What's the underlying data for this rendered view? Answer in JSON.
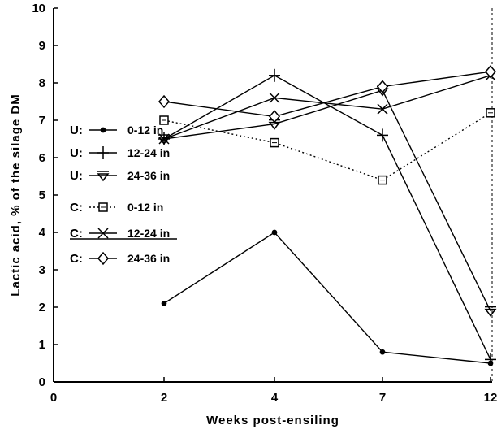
{
  "chart_data": {
    "type": "line",
    "xlabel": "Weeks post-ensiling",
    "ylabel": "Lactic acid, % of the silage DM",
    "xlim": [
      0,
      12
    ],
    "ylim": [
      0,
      10
    ],
    "x_ticks": [
      "0",
      "2",
      "4",
      "7",
      "12"
    ],
    "y_ticks": [
      "0",
      "1",
      "2",
      "3",
      "4",
      "5",
      "6",
      "7",
      "8",
      "9",
      "10"
    ],
    "x_categories": [
      0,
      2,
      4,
      7,
      12
    ],
    "grid": false,
    "legend_position": "left",
    "series": [
      {
        "prefix": "U:",
        "name": "0-12 in",
        "marker": "dot",
        "line": "solid",
        "x": [
          2,
          4,
          7,
          12
        ],
        "y": [
          2.1,
          4.0,
          0.8,
          0.5
        ]
      },
      {
        "prefix": "U:",
        "name": "12-24 in",
        "marker": "plus",
        "line": "solid",
        "x": [
          2,
          4,
          7,
          12
        ],
        "y": [
          6.5,
          8.2,
          6.6,
          0.6
        ]
      },
      {
        "prefix": "U:",
        "name": "24-36 in",
        "marker": "triangle-down",
        "line": "solid",
        "x": [
          2,
          4,
          7,
          12
        ],
        "y": [
          6.5,
          6.9,
          7.8,
          1.9
        ]
      },
      {
        "prefix": "C:",
        "name": "0-12 in",
        "marker": "square",
        "line": "dotted",
        "x": [
          2,
          4,
          7,
          12
        ],
        "y": [
          7.0,
          6.4,
          5.4,
          7.2
        ]
      },
      {
        "prefix": "C:",
        "name": "12-24 in",
        "marker": "x",
        "line": "solid",
        "x": [
          2,
          4,
          7,
          12
        ],
        "y": [
          6.5,
          7.6,
          7.3,
          8.2
        ]
      },
      {
        "prefix": "C:",
        "name": "24-36 in",
        "marker": "diamond",
        "line": "solid",
        "x": [
          2,
          4,
          7,
          12
        ],
        "y": [
          7.5,
          7.1,
          7.9,
          8.3
        ]
      }
    ]
  }
}
